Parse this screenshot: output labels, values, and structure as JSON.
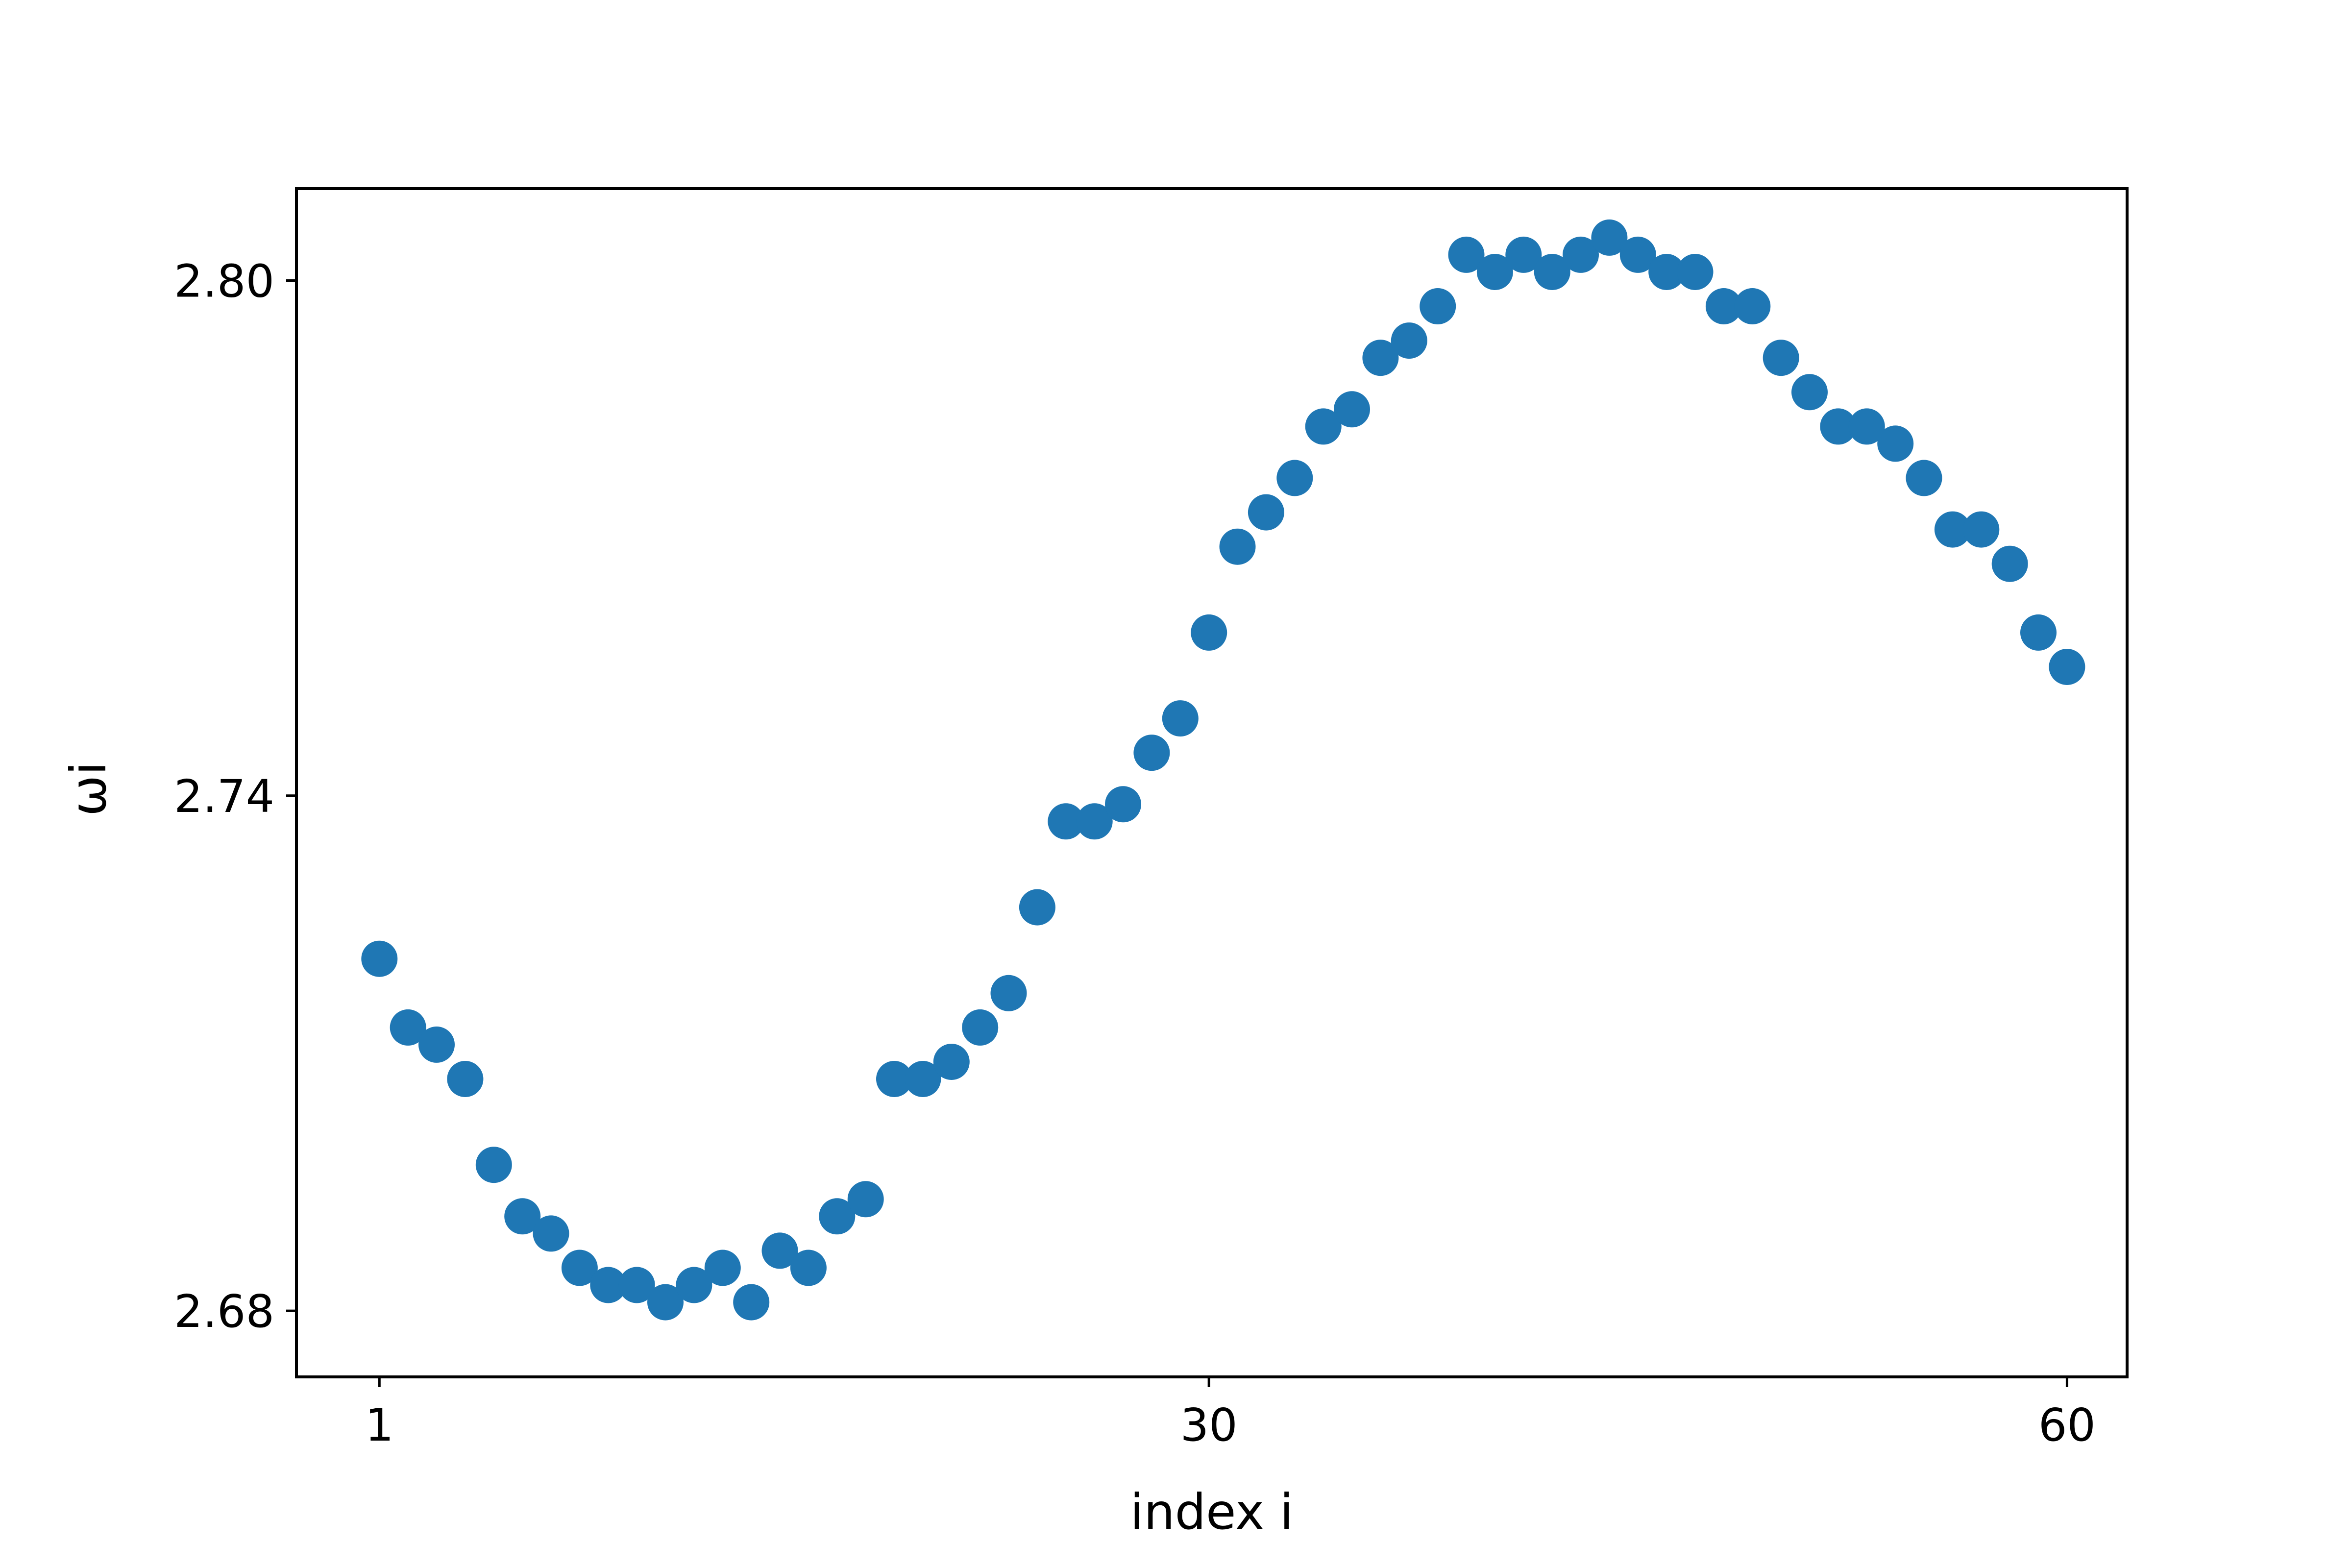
{
  "chart_data": {
    "type": "scatter",
    "title": "",
    "xlabel": "index i",
    "ylabel": "ωi",
    "xlim": [
      -1.9,
      62.1
    ],
    "ylim": [
      2.6723,
      2.8107
    ],
    "xticks": [
      1,
      30,
      60
    ],
    "xtick_labels": [
      "1",
      "30",
      "60"
    ],
    "yticks": [
      2.68,
      2.74,
      2.8
    ],
    "ytick_labels": [
      "2.68",
      "2.74",
      "2.80"
    ],
    "grid": false,
    "legend": "none",
    "marker_color": "#1f77b4",
    "series": [
      {
        "x": [
          1,
          2,
          3,
          4,
          5,
          6,
          7,
          8,
          9,
          10,
          11,
          12,
          13,
          14,
          15,
          16,
          17,
          18,
          19,
          20,
          21,
          22,
          23,
          24,
          25,
          26,
          27,
          28,
          29,
          30,
          31,
          32,
          33,
          34,
          35,
          36,
          37,
          38,
          39,
          40,
          41,
          42,
          43,
          44,
          45,
          46,
          47,
          48,
          49,
          50,
          51,
          52,
          53,
          54,
          55,
          56,
          57,
          58,
          59,
          60
        ],
        "y": [
          2.721,
          2.713,
          2.711,
          2.707,
          2.697,
          2.691,
          2.689,
          2.685,
          2.683,
          2.683,
          2.681,
          2.683,
          2.685,
          2.681,
          2.687,
          2.685,
          2.691,
          2.693,
          2.707,
          2.707,
          2.709,
          2.713,
          2.717,
          2.727,
          2.737,
          2.737,
          2.739,
          2.745,
          2.749,
          2.759,
          2.769,
          2.773,
          2.777,
          2.783,
          2.785,
          2.791,
          2.793,
          2.797,
          2.803,
          2.801,
          2.803,
          2.801,
          2.803,
          2.805,
          2.803,
          2.801,
          2.801,
          2.797,
          2.797,
          2.791,
          2.787,
          2.783,
          2.783,
          2.781,
          2.777,
          2.771,
          2.771,
          2.767,
          2.759,
          2.755
        ]
      }
    ]
  }
}
